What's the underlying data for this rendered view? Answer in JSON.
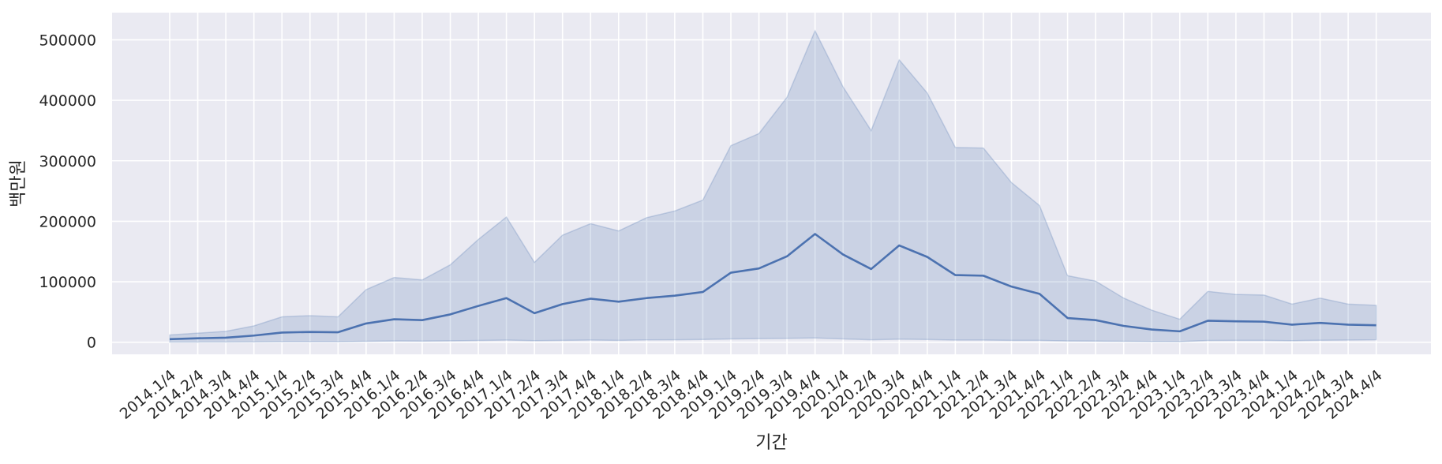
{
  "chart_data": {
    "type": "line",
    "xlabel": "기간",
    "ylabel": "백만원",
    "ylim": [
      -20000,
      545000
    ],
    "yticks": [
      0,
      100000,
      200000,
      300000,
      400000,
      500000
    ],
    "ytick_labels": [
      "0",
      "100000",
      "200000",
      "300000",
      "400000",
      "500000"
    ],
    "grid": true,
    "categories": [
      "2014.1/4",
      "2014.2/4",
      "2014.3/4",
      "2014.4/4",
      "2015.1/4",
      "2015.2/4",
      "2015.3/4",
      "2015.4/4",
      "2016.1/4",
      "2016.2/4",
      "2016.3/4",
      "2016.4/4",
      "2017.1/4",
      "2017.2/4",
      "2017.3/4",
      "2017.4/4",
      "2018.1/4",
      "2018.2/4",
      "2018.3/4",
      "2018.4/4",
      "2019.1/4",
      "2019.2/4",
      "2019.3/4",
      "2019.4/4",
      "2020.1/4",
      "2020.2/4",
      "2020.3/4",
      "2020.4/4",
      "2021.1/4",
      "2021.2/4",
      "2021.3/4",
      "2021.4/4",
      "2022.1/4",
      "2022.2/4",
      "2022.3/4",
      "2022.4/4",
      "2023.1/4",
      "2023.2/4",
      "2023.3/4",
      "2023.4/4",
      "2024.1/4",
      "2024.2/4",
      "2024.3/4",
      "2024.4/4"
    ],
    "series": [
      {
        "values": [
          5000,
          6500,
          7500,
          11000,
          16000,
          17000,
          16500,
          31000,
          38000,
          36500,
          46000,
          60000,
          73000,
          48000,
          63000,
          72000,
          67000,
          73000,
          77000,
          83000,
          115000,
          122000,
          142000,
          179000,
          145000,
          121000,
          160000,
          141000,
          111000,
          110000,
          92000,
          80000,
          40000,
          36500,
          27000,
          21000,
          18000,
          35500,
          34500,
          34000,
          29000,
          32000,
          29000,
          28000
        ],
        "upper": [
          12000,
          15000,
          18000,
          27000,
          42000,
          44000,
          42000,
          87000,
          107000,
          103000,
          128000,
          170000,
          207000,
          132000,
          177000,
          196000,
          184000,
          206000,
          217000,
          235000,
          325000,
          345000,
          405000,
          515000,
          422000,
          350000,
          467000,
          412000,
          322000,
          321000,
          264000,
          226000,
          110000,
          101000,
          73000,
          53000,
          38000,
          84000,
          79000,
          78000,
          63000,
          73000,
          63000,
          61000
        ],
        "lower": [
          200,
          300,
          400,
          500,
          800,
          900,
          900,
          1500,
          2000,
          1800,
          2200,
          2800,
          3500,
          2500,
          3000,
          3500,
          3000,
          3800,
          4000,
          4500,
          5500,
          6000,
          6500,
          7000,
          5500,
          4000,
          5000,
          4500,
          3500,
          3500,
          3000,
          3000,
          2000,
          1800,
          1500,
          1200,
          1000,
          2800,
          3000,
          3000,
          2500,
          3200,
          3500,
          4000
        ],
        "line_color": "#4c72b0",
        "band_color": "#4c72b0"
      }
    ]
  },
  "colors": {
    "plot_background": "#eaeaf2",
    "grid": "#ffffff",
    "text": "#262626"
  }
}
